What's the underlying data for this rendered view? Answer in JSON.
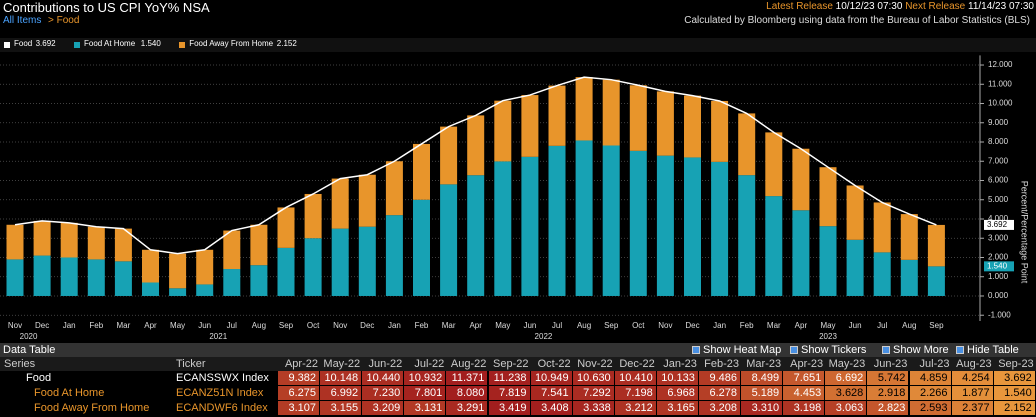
{
  "header": {
    "title": "Contributions to US CPI YoY% NSA",
    "breadcrumb_root": "All Items",
    "breadcrumb_leaf": "> Food",
    "latest_release_label": "Latest Release",
    "latest_release": "10/12/23 07:30",
    "next_release_label": "Next Release",
    "next_release": "11/14/23 07:30",
    "source": "Calculated by Bloomberg using data from the Bureau of Labor Statistics (BLS)"
  },
  "chart_data": {
    "type": "bar_line",
    "y_axis_label": "Percent/Percentage Point",
    "categories": [
      "Nov",
      "Dec",
      "Jan",
      "Feb",
      "Mar",
      "Apr",
      "May",
      "Jun",
      "Jul",
      "Aug",
      "Sep",
      "Oct",
      "Nov",
      "Dec",
      "Jan",
      "Feb",
      "Mar",
      "Apr",
      "May",
      "Jun",
      "Jul",
      "Aug",
      "Sep",
      "Oct",
      "Nov",
      "Dec",
      "Jan",
      "Feb",
      "Mar",
      "Apr",
      "May",
      "Jun",
      "Jul",
      "Aug",
      "Sep"
    ],
    "year_groups": [
      {
        "label": "2020",
        "start": 0,
        "end": 1
      },
      {
        "label": "2021",
        "start": 2,
        "end": 13
      },
      {
        "label": "2022",
        "start": 14,
        "end": 25
      },
      {
        "label": "2023",
        "start": 26,
        "end": 34
      }
    ],
    "series": [
      {
        "name": "Food",
        "legend_value": "3.692",
        "color": "#ffffff",
        "kind": "line",
        "values": [
          3.7,
          3.9,
          3.8,
          3.6,
          3.5,
          2.4,
          2.2,
          2.4,
          3.4,
          3.7,
          4.6,
          5.3,
          6.1,
          6.3,
          7.0,
          7.9,
          8.8,
          9.382,
          10.148,
          10.44,
          10.932,
          11.371,
          11.238,
          10.949,
          10.63,
          10.41,
          10.133,
          9.486,
          8.499,
          7.651,
          6.692,
          5.742,
          4.859,
          4.254,
          3.692
        ]
      },
      {
        "name": "Food At Home",
        "legend_value": "1.540",
        "color": "#17a2b4",
        "kind": "bar",
        "values": [
          1.9,
          2.1,
          2.0,
          1.9,
          1.8,
          0.7,
          0.4,
          0.6,
          1.4,
          1.6,
          2.5,
          3.0,
          3.5,
          3.6,
          4.2,
          5.0,
          5.8,
          6.275,
          6.992,
          7.23,
          7.801,
          8.08,
          7.819,
          7.541,
          7.292,
          7.198,
          6.968,
          6.278,
          5.189,
          4.453,
          3.628,
          2.918,
          2.266,
          1.877,
          1.54
        ]
      },
      {
        "name": "Food Away From Home",
        "legend_value": "2.152",
        "color": "#e8952b",
        "kind": "bar",
        "values": [
          1.8,
          1.8,
          1.8,
          1.7,
          1.7,
          1.7,
          1.8,
          1.8,
          2.0,
          2.1,
          2.1,
          2.3,
          2.6,
          2.7,
          2.8,
          2.9,
          3.0,
          3.107,
          3.155,
          3.209,
          3.131,
          3.291,
          3.419,
          3.408,
          3.338,
          3.212,
          3.165,
          3.208,
          3.31,
          3.198,
          3.063,
          2.823,
          2.593,
          2.377,
          2.152
        ]
      }
    ],
    "ylim": [
      -1.3,
      12.5
    ],
    "yticks": [
      {
        "value": -1,
        "label": "-1.000"
      },
      {
        "value": 0,
        "label": "0.000"
      },
      {
        "value": 1,
        "label": "1.000"
      },
      {
        "value": 2,
        "label": "2.000"
      },
      {
        "value": 3,
        "label": "3.000"
      },
      {
        "value": 4,
        "label": "4.000"
      },
      {
        "value": 5,
        "label": "5.000"
      },
      {
        "value": 6,
        "label": "6.000"
      },
      {
        "value": 7,
        "label": "7.000"
      },
      {
        "value": 8,
        "label": "8.000"
      },
      {
        "value": 9,
        "label": "9.000"
      },
      {
        "value": 10,
        "label": "10.000"
      },
      {
        "value": 11,
        "label": "11.000"
      },
      {
        "value": 12,
        "label": "12.000"
      }
    ],
    "grid": true
  },
  "table": {
    "title": "Data Table",
    "controls": [
      "Show Heat Map",
      "Show Tickers",
      "Show More",
      "Hide Table"
    ],
    "columns": [
      "Series",
      "Ticker",
      "Apr-22",
      "May-22",
      "Jun-22",
      "Jul-22",
      "Aug-22",
      "Sep-22",
      "Oct-22",
      "Nov-22",
      "Dec-22",
      "Jan-23",
      "Feb-23",
      "Mar-23",
      "Apr-23",
      "May-23",
      "Jun-23",
      "Jul-23",
      "Aug-23",
      "Sep-23"
    ],
    "rows": [
      [
        "Food",
        "ECANSSWX Index",
        "9.382",
        "10.148",
        "10.440",
        "10.932",
        "11.371",
        "11.238",
        "10.949",
        "10.630",
        "10.410",
        "10.133",
        "9.486",
        "8.499",
        "7.651",
        "6.692",
        "5.742",
        "4.859",
        "4.254",
        "3.692"
      ],
      [
        "Food At Home",
        "ECANZ51N Index",
        "6.275",
        "6.992",
        "7.230",
        "7.801",
        "8.080",
        "7.819",
        "7.541",
        "7.292",
        "7.198",
        "6.968",
        "6.278",
        "5.189",
        "4.453",
        "3.628",
        "2.918",
        "2.266",
        "1.877",
        "1.540"
      ],
      [
        "Food Away From Home",
        "ECANDWF6 Index",
        "3.107",
        "3.155",
        "3.209",
        "3.131",
        "3.291",
        "3.419",
        "3.408",
        "3.338",
        "3.212",
        "3.165",
        "3.208",
        "3.310",
        "3.198",
        "3.063",
        "2.823",
        "2.593",
        "2.377",
        "2.152"
      ]
    ]
  }
}
